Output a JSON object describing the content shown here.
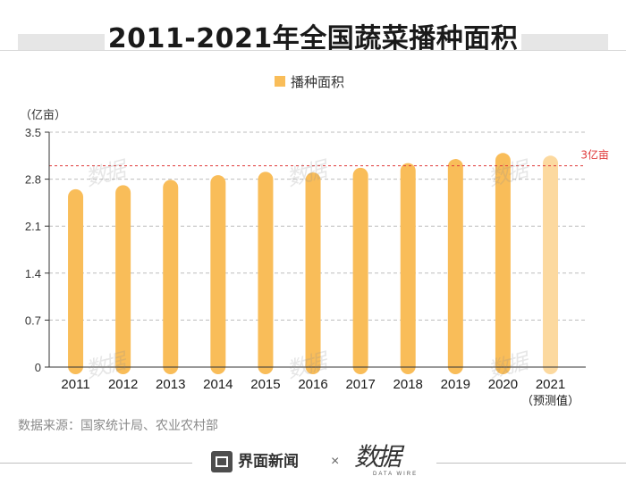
{
  "title": "2011-2021年全国蔬菜播种面积",
  "source": "数据来源：国家统计局、农业农村部",
  "footer": {
    "brand_name": "界面新闻",
    "times": "×",
    "partner_name": "数据",
    "partner_sub": "DATA WIRE"
  },
  "watermark_text": "数据",
  "colors": {
    "bar": "#f9bd59",
    "bar_forecast": "#fcd99f",
    "reference_line": "#e03b3b"
  },
  "chart_data": {
    "type": "bar",
    "title": "2011-2021年全国蔬菜播种面积",
    "ylabel": "（亿亩）",
    "xlabel": "",
    "legend": {
      "label": "播种面积",
      "position": "top-center"
    },
    "categories": [
      "2011",
      "2012",
      "2013",
      "2014",
      "2015",
      "2016",
      "2017",
      "2018",
      "2019",
      "2020",
      "2021"
    ],
    "forecast_note": "（预测值）",
    "values": [
      2.65,
      2.71,
      2.79,
      2.86,
      2.91,
      2.9,
      2.97,
      3.04,
      3.1,
      3.19,
      3.15
    ],
    "forecast": [
      false,
      false,
      false,
      false,
      false,
      false,
      false,
      false,
      false,
      false,
      true
    ],
    "ylim": [
      0,
      3.5
    ],
    "yticks": [
      0,
      0.7,
      1.4,
      2.1,
      2.8,
      3.5
    ],
    "ytick_labels": [
      "0",
      "0.7",
      "1.4",
      "2.1",
      "2.8",
      "3.5"
    ],
    "grid": true,
    "reference_line": {
      "value": 3,
      "label": "3亿亩"
    }
  }
}
